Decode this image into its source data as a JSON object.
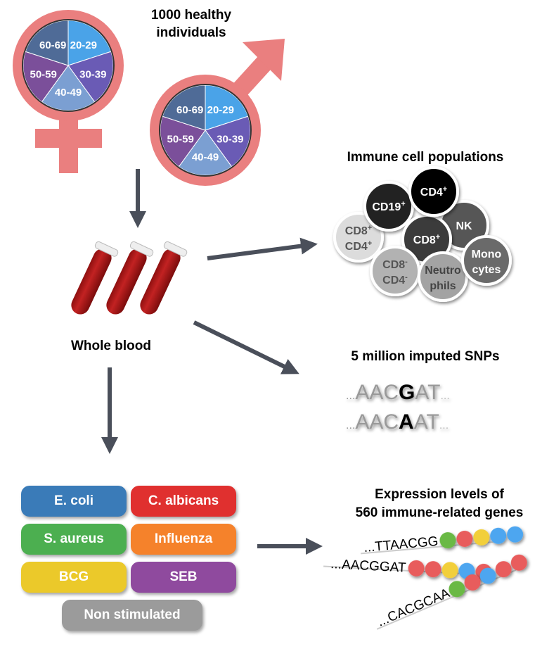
{
  "cohort": {
    "title_line1": "1000 healthy",
    "title_line2": "individuals",
    "age_groups": [
      "20-29",
      "30-39",
      "40-49",
      "50-59",
      "60-69"
    ],
    "age_colors": [
      "#4aa3e8",
      "#6a5bb5",
      "#7b9fd2",
      "#7b4f9a",
      "#4f6b97"
    ],
    "symbol_color": "#ea7f7f"
  },
  "sample": {
    "label": "Whole blood"
  },
  "immune": {
    "title": "Immune cell populations",
    "cells": [
      {
        "l1": "CD8",
        "s1": "+",
        "l2": "CD4",
        "s2": "+",
        "fill": "#dcdcdc",
        "text": "#555555"
      },
      {
        "l1": "CD19",
        "s1": "+",
        "l2": "",
        "s2": "",
        "fill": "#222222",
        "text": "#ffffff"
      },
      {
        "l1": "NK",
        "s1": "",
        "l2": "",
        "s2": "",
        "fill": "#575757",
        "text": "#ffffff"
      },
      {
        "l1": "CD8",
        "s1": "+",
        "l2": "",
        "s2": "",
        "fill": "#3a3a3a",
        "text": "#ffffff"
      },
      {
        "l1": "CD4",
        "s1": "+",
        "l2": "",
        "s2": "",
        "fill": "#000000",
        "text": "#ffffff"
      },
      {
        "l1": "CD8",
        "s1": "-",
        "l2": "CD4",
        "s2": "-",
        "fill": "#b2b2b2",
        "text": "#555555"
      },
      {
        "l1": "Neutro",
        "s1": "",
        "l2": "phils",
        "s2": "",
        "fill": "#a3a3a3",
        "text": "#444444"
      },
      {
        "l1": "Mono",
        "s1": "",
        "l2": "cytes",
        "s2": "",
        "fill": "#6b6b6b",
        "text": "#ffffff"
      }
    ]
  },
  "snps": {
    "title": "5 million imputed SNPs",
    "rows": [
      {
        "pre": "...",
        "left": "AAC",
        "allele": "G",
        "right": "AT",
        "post": "..."
      },
      {
        "pre": "...",
        "left": "AAC",
        "allele": "A",
        "right": "AT",
        "post": "..."
      }
    ]
  },
  "stimuli": [
    {
      "label": "E. coli",
      "color": "#3a7bb8"
    },
    {
      "label": "C. albicans",
      "color": "#e0302f"
    },
    {
      "label": "S. aureus",
      "color": "#4caf50"
    },
    {
      "label": "Influenza",
      "color": "#f5822b"
    },
    {
      "label": "BCG",
      "color": "#ebc92a"
    },
    {
      "label": "SEB",
      "color": "#8f4a9e"
    },
    {
      "label": "Non stimulated",
      "color": "#9b9b9b"
    }
  ],
  "expression": {
    "title_line1": "Expression levels of",
    "title_line2": "560 immune-related genes",
    "rows": [
      {
        "seq": "...TTAACGG",
        "dots": [
          "#6ab944",
          "#e85c5c",
          "#f2cf3a",
          "#4ea6f0",
          "#4ea6f0"
        ]
      },
      {
        "seq": "...AACGGAT",
        "dots": [
          "#e85c5c",
          "#e85c5c",
          "#f2cf3a",
          "#4ea6f0",
          "#e85c5c"
        ]
      },
      {
        "seq": "...CACGCAA",
        "dots": [
          "#6ab944",
          "#e85c5c",
          "#4ea6f0",
          "#e85c5c",
          "#e85c5c"
        ]
      }
    ]
  },
  "arrow_color": "#4a4f5a"
}
